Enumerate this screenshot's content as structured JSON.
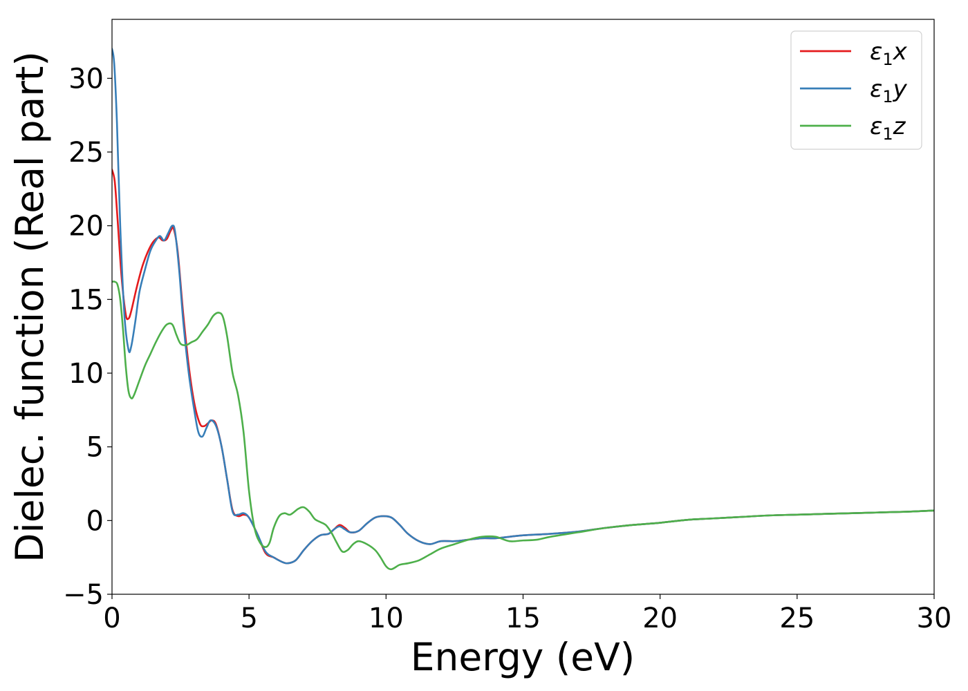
{
  "chart_data": {
    "type": "line",
    "xlabel": "Energy (eV)",
    "ylabel": "Dielec. function (Real part)",
    "xlim": [
      0,
      30
    ],
    "ylim": [
      -5,
      34
    ],
    "xticks": [
      0,
      5,
      10,
      15,
      20,
      25,
      30
    ],
    "xtick_labels": [
      "0",
      "5",
      "10",
      "15",
      "20",
      "25",
      "30"
    ],
    "yticks": [
      -5,
      0,
      5,
      10,
      15,
      20,
      25,
      30
    ],
    "ytick_labels": [
      "−5",
      "0",
      "5",
      "10",
      "15",
      "20",
      "25",
      "30"
    ],
    "grid": false,
    "legend_position": "top-right",
    "series": [
      {
        "name": "ε₁x",
        "legend_sub": "1",
        "legend_base": "ε",
        "legend_suffix": "x",
        "color": "#e41a1c",
        "x": [
          0,
          0.1,
          0.2,
          0.35,
          0.5,
          0.6,
          0.7,
          0.9,
          1.1,
          1.3,
          1.5,
          1.7,
          1.85,
          2.0,
          2.15,
          2.25,
          2.4,
          2.6,
          2.8,
          3.0,
          3.2,
          3.35,
          3.5,
          3.65,
          3.8,
          4.0,
          4.2,
          4.4,
          4.6,
          4.8,
          5.0,
          5.3,
          5.6,
          5.9,
          6.2,
          6.4,
          6.7,
          7.0,
          7.3,
          7.6,
          7.9,
          8.1,
          8.3,
          8.5,
          8.7,
          9.0,
          9.3,
          9.6,
          9.9,
          10.2,
          10.5,
          10.8,
          11.2,
          11.6,
          12.0,
          12.5,
          13.0,
          13.5,
          14.0,
          14.5,
          15.0,
          16.0,
          17.0,
          18.0,
          19.0,
          20.0,
          21.0,
          22.0,
          23.0,
          24.0,
          25.0,
          26.0,
          27.0,
          28.0,
          29.0,
          30.0
        ],
        "y": [
          23.8,
          23.0,
          20.5,
          16.5,
          14.0,
          13.7,
          14.2,
          15.8,
          17.2,
          18.2,
          18.9,
          19.2,
          19.0,
          19.1,
          19.7,
          19.8,
          18.2,
          14.0,
          10.5,
          8.0,
          6.6,
          6.4,
          6.6,
          6.8,
          6.5,
          5.0,
          2.8,
          0.7,
          0.3,
          0.4,
          0.2,
          -0.9,
          -2.2,
          -2.5,
          -2.8,
          -2.9,
          -2.7,
          -2.0,
          -1.4,
          -1.0,
          -0.9,
          -0.6,
          -0.3,
          -0.5,
          -0.8,
          -0.7,
          -0.2,
          0.2,
          0.3,
          0.2,
          -0.3,
          -0.9,
          -1.4,
          -1.6,
          -1.4,
          -1.4,
          -1.3,
          -1.2,
          -1.2,
          -1.1,
          -1.0,
          -0.9,
          -0.75,
          -0.5,
          -0.3,
          -0.15,
          0.05,
          0.15,
          0.25,
          0.35,
          0.4,
          0.45,
          0.5,
          0.55,
          0.6,
          0.68
        ]
      },
      {
        "name": "ε₁y",
        "legend_sub": "1",
        "legend_base": "ε",
        "legend_suffix": "y",
        "color": "#377eb8",
        "x": [
          0,
          0.08,
          0.18,
          0.3,
          0.45,
          0.6,
          0.7,
          0.85,
          1.0,
          1.2,
          1.4,
          1.6,
          1.75,
          1.9,
          2.05,
          2.2,
          2.3,
          2.45,
          2.6,
          2.8,
          3.0,
          3.15,
          3.3,
          3.45,
          3.6,
          3.8,
          4.0,
          4.2,
          4.4,
          4.6,
          4.8,
          5.0,
          5.3,
          5.6,
          5.9,
          6.2,
          6.4,
          6.7,
          7.0,
          7.3,
          7.6,
          7.9,
          8.1,
          8.3,
          8.5,
          8.7,
          9.0,
          9.3,
          9.6,
          9.9,
          10.2,
          10.5,
          10.8,
          11.2,
          11.6,
          12.0,
          12.5,
          13.0,
          13.5,
          14.0,
          14.5,
          15.0,
          16.0,
          17.0,
          18.0,
          19.0,
          20.0,
          21.0,
          22.0,
          23.0,
          24.0,
          25.0,
          26.0,
          27.0,
          28.0,
          29.0,
          30.0
        ],
        "y": [
          32.0,
          31.0,
          27.0,
          20.0,
          14.0,
          11.6,
          11.8,
          13.5,
          15.5,
          17.0,
          18.3,
          19.0,
          19.3,
          19.0,
          19.5,
          20.0,
          19.6,
          17.0,
          13.5,
          10.0,
          7.5,
          6.0,
          5.7,
          6.3,
          6.8,
          6.4,
          5.0,
          2.8,
          0.6,
          0.4,
          0.5,
          0.2,
          -0.9,
          -2.1,
          -2.5,
          -2.8,
          -2.9,
          -2.7,
          -2.0,
          -1.4,
          -1.0,
          -0.9,
          -0.6,
          -0.4,
          -0.6,
          -0.8,
          -0.7,
          -0.2,
          0.2,
          0.3,
          0.2,
          -0.3,
          -0.9,
          -1.4,
          -1.6,
          -1.4,
          -1.4,
          -1.3,
          -1.2,
          -1.2,
          -1.1,
          -1.0,
          -0.9,
          -0.75,
          -0.5,
          -0.3,
          -0.15,
          0.05,
          0.15,
          0.25,
          0.35,
          0.4,
          0.45,
          0.5,
          0.55,
          0.6,
          0.68
        ]
      },
      {
        "name": "ε₁z",
        "legend_sub": "1",
        "legend_base": "ε",
        "legend_suffix": "z",
        "color": "#4daf4a",
        "x": [
          0,
          0.1,
          0.2,
          0.3,
          0.4,
          0.5,
          0.6,
          0.7,
          0.8,
          1.0,
          1.2,
          1.4,
          1.6,
          1.8,
          2.0,
          2.2,
          2.35,
          2.5,
          2.7,
          2.9,
          3.1,
          3.3,
          3.5,
          3.7,
          3.9,
          4.05,
          4.2,
          4.4,
          4.6,
          4.8,
          5.0,
          5.2,
          5.4,
          5.6,
          5.75,
          5.9,
          6.1,
          6.3,
          6.5,
          6.8,
          7.0,
          7.2,
          7.4,
          7.6,
          7.8,
          8.0,
          8.2,
          8.4,
          8.6,
          8.8,
          9.0,
          9.3,
          9.6,
          9.8,
          10.0,
          10.2,
          10.5,
          10.8,
          11.2,
          11.6,
          12.0,
          12.5,
          13.0,
          13.5,
          14.0,
          14.5,
          15.0,
          15.5,
          16.0,
          17.0,
          18.0,
          19.0,
          20.0,
          21.0,
          22.0,
          23.0,
          24.0,
          25.0,
          26.0,
          27.0,
          28.0,
          29.0,
          30.0
        ],
        "y": [
          16.2,
          16.2,
          16.0,
          15.0,
          13.0,
          10.5,
          8.8,
          8.3,
          8.5,
          9.5,
          10.5,
          11.3,
          12.1,
          12.8,
          13.3,
          13.3,
          12.6,
          12.0,
          11.9,
          12.1,
          12.3,
          12.8,
          13.3,
          13.9,
          14.1,
          13.8,
          12.5,
          10.0,
          8.5,
          6.0,
          2.0,
          -0.5,
          -1.5,
          -1.8,
          -1.5,
          -0.5,
          0.3,
          0.5,
          0.4,
          0.8,
          0.9,
          0.6,
          0.1,
          -0.1,
          -0.3,
          -0.8,
          -1.5,
          -2.1,
          -2.0,
          -1.6,
          -1.4,
          -1.6,
          -2.0,
          -2.5,
          -3.1,
          -3.3,
          -3.0,
          -2.9,
          -2.7,
          -2.3,
          -1.9,
          -1.6,
          -1.3,
          -1.1,
          -1.1,
          -1.4,
          -1.35,
          -1.3,
          -1.1,
          -0.8,
          -0.5,
          -0.3,
          -0.15,
          0.05,
          0.15,
          0.25,
          0.35,
          0.4,
          0.45,
          0.5,
          0.55,
          0.6,
          0.68
        ]
      }
    ]
  }
}
